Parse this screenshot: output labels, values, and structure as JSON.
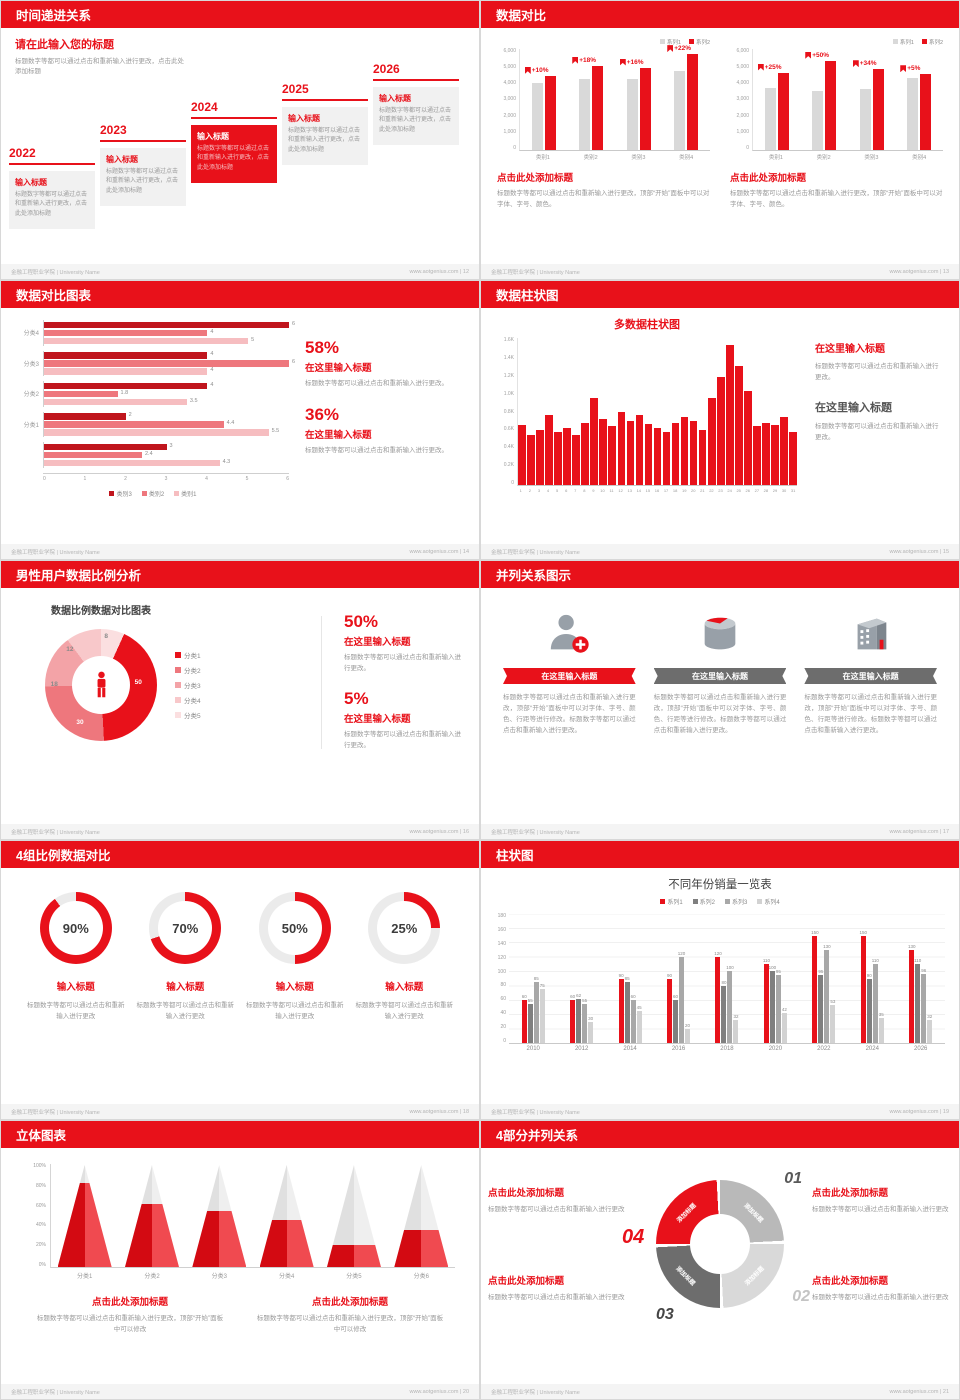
{
  "colors": {
    "accent": "#e8111a",
    "bar_gray": "#d9d9d9",
    "dark_gray": "#6d6d6d",
    "text_gray": "#9a9a9a"
  },
  "footer": {
    "left": "金融工程职业学院 | University Name",
    "site": "www.aotgenius.com"
  },
  "slides": {
    "s12": {
      "header": "时间递进关系",
      "footer_right": "www.aotgenius.com | 12",
      "intro_title": "请在此输入您的标题",
      "intro_text": "标题数字等都可以通过点击和重新输入进行更改，点击此处添加标题",
      "steps": [
        {
          "year": "2022",
          "title": "输入标题",
          "text": "标题数字等都可以通过点击和重新输入进行更改，点击此处添加标题",
          "highlight": false
        },
        {
          "year": "2023",
          "title": "输入标题",
          "text": "标题数字等都可以通过点击和重新输入进行更改，点击此处添加标题",
          "highlight": false
        },
        {
          "year": "2024",
          "title": "输入标题",
          "text": "标题数字等都可以通过点击和重新输入进行更改，点击此处添加标题",
          "highlight": true
        },
        {
          "year": "2025",
          "title": "输入标题",
          "text": "标题数字等都可以通过点击和重新输入进行更改，点击此处添加标题",
          "highlight": false
        },
        {
          "year": "2026",
          "title": "输入标题",
          "text": "标题数字等都可以通过点击和重新输入进行更改，点击此处添加标题",
          "highlight": false
        }
      ]
    },
    "s13": {
      "header": "数据对比",
      "footer_right": "www.aotgenius.com | 13",
      "caption_title": "点击此处添加标题",
      "caption_text": "标题数字等都可以通过点击和重新输入进行更改，顶部“开始”面板中可以对字体、字号、颜色。",
      "legend": [
        "系列1",
        "系列2"
      ],
      "yticks": [
        "6,000",
        "5,000",
        "4,000",
        "3,000",
        "2,000",
        "1,000",
        "0"
      ],
      "ymax": 6000,
      "categories": [
        "类别1",
        "类别2",
        "类别3",
        "类别4"
      ],
      "charts": [
        {
          "percents": [
            "+10%",
            "+18%",
            "+16%",
            "+22%"
          ],
          "series1": [
            4000,
            4200,
            4200,
            4700
          ],
          "series2": [
            4400,
            5000,
            4900,
            5700
          ]
        },
        {
          "percents": [
            "+25%",
            "+50%",
            "+34%",
            "+5%"
          ],
          "series1": [
            3700,
            3500,
            3600,
            4300
          ],
          "series2": [
            4600,
            5300,
            4800,
            4500
          ]
        }
      ]
    },
    "s14": {
      "header": "数据对比图表",
      "footer_right": "www.aotgenius.com | 14",
      "xticks": [
        "0",
        "1",
        "2",
        "3",
        "4",
        "5",
        "6"
      ],
      "xmax": 6,
      "groups": [
        {
          "label": "分类4",
          "values": [
            6,
            4,
            5
          ]
        },
        {
          "label": "分类3",
          "values": [
            4,
            6,
            4
          ]
        },
        {
          "label": "分类2",
          "values": [
            4,
            1.8,
            3.5
          ]
        },
        {
          "label": "分类1",
          "values": [
            2,
            4.4,
            5.5
          ]
        },
        {
          "label": "",
          "values": [
            3,
            2.4,
            4.3
          ]
        }
      ],
      "legend": [
        {
          "label": "类别3",
          "color": "#c0151d"
        },
        {
          "label": "类别2",
          "color": "#ee777d"
        },
        {
          "label": "类别1",
          "color": "#f6bdc0"
        }
      ],
      "stats": [
        {
          "value": "58%",
          "title": "在这里输入标题",
          "text": "标题数字等都可以通过点击和重新输入进行更改。"
        },
        {
          "value": "36%",
          "title": "在这里输入标题",
          "text": "标题数字等都可以通过点击和重新输入进行更改。"
        }
      ]
    },
    "s15": {
      "header": "数据柱状图",
      "footer_right": "www.aotgenius.com | 15",
      "chart_title": "多数据柱状图",
      "yticks": [
        "1.6K",
        "1.4K",
        "1.2K",
        "1.0K",
        "0.8K",
        "0.6K",
        "0.4K",
        "0.2K",
        "0"
      ],
      "ymax": 1600,
      "values": [
        650,
        540,
        600,
        760,
        580,
        620,
        540,
        680,
        950,
        720,
        640,
        800,
        700,
        760,
        660,
        620,
        580,
        680,
        740,
        700,
        600,
        950,
        1180,
        1520,
        1300,
        1020,
        640,
        680,
        650,
        740,
        580
      ],
      "xlabels": [
        "1",
        "2",
        "3",
        "4",
        "5",
        "6",
        "7",
        "8",
        "9",
        "10",
        "11",
        "12",
        "13",
        "14",
        "15",
        "16",
        "17",
        "18",
        "19",
        "20",
        "21",
        "22",
        "23",
        "24",
        "25",
        "26",
        "27",
        "28",
        "29",
        "30",
        "31"
      ],
      "block1_title": "在这里输入标题",
      "block1_text": "标题数字等都可以通过点击和重新输入进行更改。",
      "block2_title": "在这里输入标题",
      "block2_text": "标题数字等都可以通过点击和重新输入进行更改。"
    },
    "s16": {
      "header": "男性用户数据比例分析",
      "footer_right": "www.aotgenius.com | 16",
      "chart_title": "数据比例数据对比图表",
      "donut": {
        "values": [
          8,
          50,
          30,
          18,
          12
        ],
        "labels": [
          "8",
          "50",
          "30",
          "18",
          "12"
        ],
        "colors": [
          "#fbdfe0",
          "#e8111a",
          "#ee777d",
          "#f3a3a7",
          "#f8c8ca"
        ]
      },
      "legend": [
        {
          "label": "分类1",
          "color": "#e8111a"
        },
        {
          "label": "分类2",
          "color": "#ee777d"
        },
        {
          "label": "分类3",
          "color": "#f3a3a7"
        },
        {
          "label": "分类4",
          "color": "#f8c8ca"
        },
        {
          "label": "分类5",
          "color": "#fbdfe0"
        }
      ],
      "stats": [
        {
          "value": "50%",
          "title": "在这里输入标题",
          "text": "标题数字等都可以通过点击和重新输入进行更改。"
        },
        {
          "value": "5%",
          "title": "在这里输入标题",
          "text": "标题数字等都可以通过点击和重新输入进行更改。"
        }
      ]
    },
    "s17": {
      "header": "并列关系图示",
      "footer_right": "www.aotgenius.com | 17",
      "banner": "在这里输入标题",
      "column_text": "标题数字等都可以通过点击和重新输入进行更改，顶部“开始”面板中可以对字体、字号、颜色、行距等进行修改。标题数字等都可以通过点击和重新输入进行更改。",
      "icons": [
        "nurse-icon",
        "database-icon",
        "building-icon"
      ]
    },
    "s18": {
      "header": "4组比例数据对比",
      "footer_right": "www.aotgenius.com | 18",
      "items": [
        {
          "percent": 90,
          "label": "90%",
          "title": "输入标题",
          "text": "标题数字等都可以通过点击和重新输入进行更改"
        },
        {
          "percent": 70,
          "label": "70%",
          "title": "输入标题",
          "text": "标题数字等都可以通过点击和重新输入进行更改"
        },
        {
          "percent": 50,
          "label": "50%",
          "title": "输入标题",
          "text": "标题数字等都可以通过点击和重新输入进行更改"
        },
        {
          "percent": 25,
          "label": "25%",
          "title": "输入标题",
          "text": "标题数字等都可以通过点击和重新输入进行更改"
        }
      ]
    },
    "s19": {
      "header": "柱状图",
      "footer_right": "www.aotgenius.com | 19",
      "chart_title": "不同年份销量一览表",
      "legend": [
        {
          "label": "系列1",
          "color": "#e8111a"
        },
        {
          "label": "系列2",
          "color": "#7f7f7f"
        },
        {
          "label": "系列3",
          "color": "#a8a8a8"
        },
        {
          "label": "系列4",
          "color": "#d2d2d2"
        }
      ],
      "categories": [
        "2010",
        "2012",
        "2014",
        "2016",
        "2018",
        "2020",
        "2022",
        "2024",
        "2026"
      ],
      "yticks": [
        "180",
        "160",
        "140",
        "120",
        "100",
        "80",
        "60",
        "40",
        "20",
        "0"
      ],
      "ymax": 180,
      "series": [
        {
          "name": "系列1",
          "values": [
            60,
            60,
            90,
            90,
            120,
            110,
            150,
            150,
            130
          ]
        },
        {
          "name": "系列2",
          "values": [
            55,
            62,
            85,
            60,
            80,
            100,
            95,
            90,
            110
          ]
        },
        {
          "name": "系列3",
          "values": [
            85,
            55,
            60,
            120,
            100,
            95,
            130,
            110,
            96
          ]
        },
        {
          "name": "系列4",
          "values": [
            75,
            30,
            45,
            20,
            32,
            42,
            53,
            35,
            32
          ]
        }
      ]
    },
    "s20": {
      "header": "立体图表",
      "footer_right": "www.aotgenius.com | 20",
      "yticks": [
        "100%",
        "80%",
        "60%",
        "40%",
        "20%",
        "0%"
      ],
      "cones": [
        {
          "label": "分类1",
          "fill": 82
        },
        {
          "label": "分类2",
          "fill": 62
        },
        {
          "label": "分类3",
          "fill": 55
        },
        {
          "label": "分类4",
          "fill": 46
        },
        {
          "label": "分类5",
          "fill": 22
        },
        {
          "label": "分类6",
          "fill": 36
        }
      ],
      "captions": [
        {
          "title": "点击此处添加标题",
          "text": "标题数字等都可以通过点击和重新输入进行更改，顶部“开始”面板中可以修改"
        },
        {
          "title": "点击此处添加标题",
          "text": "标题数字等都可以通过点击和重新输入进行更改，顶部“开始”面板中可以修改"
        }
      ]
    },
    "s21": {
      "header": "4部分并列关系",
      "footer_right": "www.aotgenius.com | 21",
      "segments": [
        {
          "num": "01",
          "label": "添加标题",
          "color": "#b9b9b9"
        },
        {
          "num": "02",
          "label": "添加标题",
          "color": "#d9d9d9"
        },
        {
          "num": "03",
          "label": "添加标题",
          "color": "#6d6d6d"
        },
        {
          "num": "04",
          "label": "添加标题",
          "color": "#e8111a"
        }
      ],
      "blocks": [
        {
          "title": "点击此处添加标题",
          "text": "标题数字等都可以通过点击和重新输入进行更改"
        },
        {
          "title": "点击此处添加标题",
          "text": "标题数字等都可以通过点击和重新输入进行更改"
        },
        {
          "title": "点击此处添加标题",
          "text": "标题数字等都可以通过点击和重新输入进行更改"
        },
        {
          "title": "点击此处添加标题",
          "text": "标题数字等都可以通过点击和重新输入进行更改"
        }
      ]
    }
  }
}
